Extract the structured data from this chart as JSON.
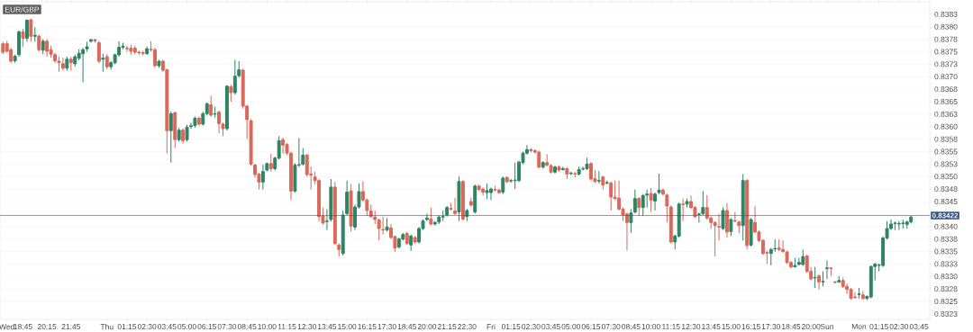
{
  "chart_data": {
    "type": "candlestick",
    "title": "EUR/GBP",
    "categories": [
      null,
      "Wed",
      null,
      null,
      null,
      "18:45",
      null,
      null,
      null,
      null,
      null,
      "20:15",
      null,
      null,
      null,
      null,
      null,
      "21:45",
      null,
      null,
      null,
      null,
      null,
      null,
      null,
      null,
      "Thu",
      null,
      null,
      null,
      null,
      "01:15",
      null,
      null,
      null,
      null,
      "02:30",
      null,
      null,
      null,
      null,
      "03:45",
      null,
      null,
      null,
      null,
      "05:00",
      null,
      null,
      null,
      null,
      "06:15",
      null,
      null,
      null,
      null,
      "07:30",
      null,
      null,
      null,
      null,
      "08:45",
      null,
      null,
      null,
      null,
      "10:00",
      null,
      null,
      null,
      null,
      "11:15",
      null,
      null,
      null,
      null,
      "12:30",
      null,
      null,
      null,
      null,
      "13:45",
      null,
      null,
      null,
      null,
      "15:00",
      null,
      null,
      null,
      null,
      "16:15",
      null,
      null,
      null,
      null,
      "17:30",
      null,
      null,
      null,
      null,
      "18:45",
      null,
      null,
      null,
      null,
      "20:00",
      null,
      null,
      null,
      null,
      "21:15",
      null,
      null,
      null,
      null,
      "22:30",
      null,
      null,
      null,
      null,
      null,
      "Fri",
      null,
      null,
      null,
      null,
      "01:15",
      null,
      null,
      null,
      null,
      "02:30",
      null,
      null,
      null,
      null,
      "03:45",
      null,
      null,
      null,
      null,
      "05:00",
      null,
      null,
      null,
      null,
      "06:15",
      null,
      null,
      null,
      null,
      "07:30",
      null,
      null,
      null,
      null,
      "08:45",
      null,
      null,
      null,
      null,
      "10:00",
      null,
      null,
      null,
      null,
      "11:15",
      null,
      null,
      null,
      null,
      "12:30",
      null,
      null,
      null,
      null,
      "13:45",
      null,
      null,
      null,
      null,
      "15:00",
      null,
      null,
      null,
      null,
      "16:15",
      null,
      null,
      null,
      null,
      "17:30",
      null,
      null,
      null,
      null,
      "18:45",
      null,
      null,
      null,
      null,
      "20:00",
      null,
      null,
      null,
      "Sun",
      null,
      null,
      null,
      null,
      null,
      null,
      null,
      "Mon",
      null,
      null,
      null,
      null,
      "01:15",
      null,
      null,
      null,
      null,
      "02:30",
      null,
      null,
      null,
      null,
      "03:45"
    ],
    "ohlc": [
      [
        0.83766,
        0.8377,
        0.83745,
        0.83749
      ],
      [
        0.83766,
        0.83772,
        0.83748,
        0.83751
      ],
      [
        0.83754,
        0.83758,
        0.83728,
        0.83731
      ],
      [
        0.83732,
        0.83744,
        0.83728,
        0.83741
      ],
      [
        0.83744,
        0.83792,
        0.8374,
        0.8379
      ],
      [
        0.8379,
        0.83796,
        0.8376,
        0.83777
      ],
      [
        0.83777,
        0.83815,
        0.8377,
        0.83813
      ],
      [
        0.83814,
        0.83816,
        0.8377,
        0.83781
      ],
      [
        0.83781,
        0.83799,
        0.8377,
        0.83783
      ],
      [
        0.83781,
        0.83785,
        0.8375,
        0.83754
      ],
      [
        0.83753,
        0.83775,
        0.83745,
        0.83771
      ],
      [
        0.83771,
        0.83775,
        0.8374,
        0.83751
      ],
      [
        0.83754,
        0.83762,
        0.83738,
        0.83745
      ],
      [
        0.83744,
        0.83748,
        0.83727,
        0.83732
      ],
      [
        0.83731,
        0.8374,
        0.8371,
        0.83728
      ],
      [
        0.83726,
        0.83738,
        0.83712,
        0.83717
      ],
      [
        0.83717,
        0.8374,
        0.83712,
        0.83735
      ],
      [
        0.83735,
        0.8374,
        0.83712,
        0.83728
      ],
      [
        0.83726,
        0.83744,
        0.8372,
        0.8374
      ],
      [
        0.83737,
        0.83755,
        0.83733,
        0.83747
      ],
      [
        0.83746,
        0.83758,
        0.83689,
        0.83754
      ],
      [
        0.83756,
        0.8377,
        0.8375,
        0.8376
      ],
      [
        0.83771,
        0.83776,
        0.83768,
        0.83774
      ],
      [
        0.83774,
        0.83776,
        0.83768,
        0.83772
      ],
      [
        0.83768,
        0.83772,
        0.83727,
        0.83731
      ],
      [
        0.83735,
        0.83746,
        0.8371,
        0.83737
      ],
      [
        0.8374,
        0.83745,
        0.83715,
        0.8372
      ],
      [
        0.8372,
        0.83731,
        0.83714,
        0.83728
      ],
      [
        0.83728,
        0.83746,
        0.83725,
        0.83744
      ],
      [
        0.83744,
        0.83771,
        0.8374,
        0.83759
      ],
      [
        0.83759,
        0.83768,
        0.83755,
        0.83761
      ],
      [
        0.83757,
        0.83762,
        0.8375,
        0.83756
      ],
      [
        0.83757,
        0.83764,
        0.83744,
        0.83751
      ],
      [
        0.83757,
        0.83762,
        0.83745,
        0.83749
      ],
      [
        0.83749,
        0.83752,
        0.83744,
        0.83748
      ],
      [
        0.83748,
        0.83752,
        0.83743,
        0.83747
      ],
      [
        0.83746,
        0.8376,
        0.83744,
        0.83756
      ],
      [
        0.83755,
        0.83771,
        0.8375,
        0.83754
      ],
      [
        0.83754,
        0.83758,
        0.83718,
        0.83722
      ],
      [
        0.83722,
        0.83734,
        0.83718,
        0.83731
      ],
      [
        0.83731,
        0.83734,
        0.8371,
        0.83713
      ],
      [
        0.83714,
        0.83716,
        0.83546,
        0.83592
      ],
      [
        0.83592,
        0.8363,
        0.83528,
        0.83626
      ],
      [
        0.83628,
        0.8363,
        0.83557,
        0.83574
      ],
      [
        0.83574,
        0.83598,
        0.8357,
        0.83593
      ],
      [
        0.83593,
        0.83597,
        0.83566,
        0.83572
      ],
      [
        0.83574,
        0.83604,
        0.8357,
        0.83599
      ],
      [
        0.836,
        0.83608,
        0.83596,
        0.83602
      ],
      [
        0.83602,
        0.8362,
        0.83598,
        0.83617
      ],
      [
        0.83617,
        0.8362,
        0.83602,
        0.83605
      ],
      [
        0.83605,
        0.8363,
        0.83602,
        0.83626
      ],
      [
        0.83626,
        0.83648,
        0.83622,
        0.83646
      ],
      [
        0.83644,
        0.83662,
        0.8362,
        0.83623
      ],
      [
        0.83625,
        0.8364,
        0.83618,
        0.83626
      ],
      [
        0.83629,
        0.83632,
        0.83587,
        0.83606
      ],
      [
        0.83605,
        0.83608,
        0.83581,
        0.83596
      ],
      [
        0.83596,
        0.83683,
        0.83592,
        0.83681
      ],
      [
        0.8368,
        0.83684,
        0.8365,
        0.83668
      ],
      [
        0.83668,
        0.83734,
        0.83664,
        0.83701
      ],
      [
        0.83702,
        0.83731,
        0.83698,
        0.83714
      ],
      [
        0.83713,
        0.83716,
        0.83636,
        0.83641
      ],
      [
        0.83641,
        0.83644,
        0.83575,
        0.83614
      ],
      [
        0.83612,
        0.83615,
        0.83522,
        0.83525
      ],
      [
        0.83523,
        0.83526,
        0.83498,
        0.83504
      ],
      [
        0.83505,
        0.83508,
        0.83474,
        0.83489
      ],
      [
        0.83489,
        0.83524,
        0.83474,
        0.8351
      ],
      [
        0.83513,
        0.83528,
        0.8351,
        0.83526
      ],
      [
        0.83526,
        0.83546,
        0.8351,
        0.83516
      ],
      [
        0.83516,
        0.8354,
        0.83512,
        0.83537
      ],
      [
        0.83537,
        0.83581,
        0.83534,
        0.83572
      ],
      [
        0.83574,
        0.83578,
        0.83546,
        0.83563
      ],
      [
        0.83564,
        0.83567,
        0.83543,
        0.83547
      ],
      [
        0.83547,
        0.8355,
        0.83453,
        0.83471
      ],
      [
        0.83471,
        0.83527,
        0.83468,
        0.83523
      ],
      [
        0.83523,
        0.83577,
        0.83519,
        0.83524
      ],
      [
        0.83525,
        0.83557,
        0.83522,
        0.83543
      ],
      [
        0.83543,
        0.83546,
        0.835,
        0.83504
      ],
      [
        0.83505,
        0.8352,
        0.83474,
        0.83503
      ],
      [
        0.83499,
        0.8351,
        0.83485,
        0.83492
      ],
      [
        0.83492,
        0.83495,
        0.8341,
        0.8342
      ],
      [
        0.83421,
        0.83438,
        0.83404,
        0.83407
      ],
      [
        0.8341,
        0.83435,
        0.83393,
        0.83411
      ],
      [
        0.83414,
        0.83495,
        0.8341,
        0.83479
      ],
      [
        0.83479,
        0.83489,
        0.83363,
        0.83366
      ],
      [
        0.83363,
        0.83366,
        0.8334,
        0.83354
      ],
      [
        0.83346,
        0.83432,
        0.83342,
        0.83423
      ],
      [
        0.83426,
        0.83492,
        0.83423,
        0.83469
      ],
      [
        0.83471,
        0.83485,
        0.8339,
        0.83401
      ],
      [
        0.83399,
        0.83444,
        0.83393,
        0.83439
      ],
      [
        0.83439,
        0.83486,
        0.83436,
        0.8347
      ],
      [
        0.8347,
        0.83491,
        0.83449,
        0.83453
      ],
      [
        0.83453,
        0.83456,
        0.83421,
        0.83432
      ],
      [
        0.83431,
        0.83444,
        0.83417,
        0.8342
      ],
      [
        0.83419,
        0.83432,
        0.83405,
        0.83414
      ],
      [
        0.83413,
        0.83416,
        0.83372,
        0.83396
      ],
      [
        0.83394,
        0.8342,
        0.83384,
        0.83393
      ],
      [
        0.83393,
        0.83417,
        0.8339,
        0.83399
      ],
      [
        0.83397,
        0.83405,
        0.83375,
        0.83378
      ],
      [
        0.8338,
        0.83382,
        0.83349,
        0.83357
      ],
      [
        0.83359,
        0.83378,
        0.83356,
        0.83375
      ],
      [
        0.83375,
        0.83387,
        0.83372,
        0.83384
      ],
      [
        0.83386,
        0.83389,
        0.83363,
        0.83366
      ],
      [
        0.83363,
        0.83384,
        0.83351,
        0.83381
      ],
      [
        0.83378,
        0.83381,
        0.83366,
        0.83369
      ],
      [
        0.83369,
        0.83399,
        0.83366,
        0.83396
      ],
      [
        0.83396,
        0.83414,
        0.83393,
        0.83411
      ],
      [
        0.83414,
        0.83426,
        0.83411,
        0.83417
      ],
      [
        0.83415,
        0.83438,
        0.83402,
        0.83405
      ],
      [
        0.83405,
        0.83411,
        0.83402,
        0.83408
      ],
      [
        0.83409,
        0.83422,
        0.83405,
        0.83419
      ],
      [
        0.83419,
        0.83432,
        0.83411,
        0.8342
      ],
      [
        0.83423,
        0.83441,
        0.8342,
        0.83438
      ],
      [
        0.83436,
        0.83447,
        0.83432,
        0.83435
      ],
      [
        0.83431,
        0.83457,
        0.83423,
        0.83426
      ],
      [
        0.83429,
        0.835,
        0.83411,
        0.8349
      ],
      [
        0.8349,
        0.83493,
        0.83412,
        0.83415
      ],
      [
        0.8342,
        0.83435,
        0.83411,
        0.83432
      ],
      [
        0.8345,
        0.83458,
        0.8344,
        0.83443
      ],
      [
        0.83429,
        0.83484,
        0.83426,
        0.83481
      ],
      [
        0.83481,
        0.83483,
        0.83471,
        0.83474
      ],
      [
        0.83475,
        0.83478,
        0.83462,
        0.83469
      ],
      [
        0.83468,
        0.83486,
        0.83455,
        0.83472
      ],
      [
        0.83468,
        0.83478,
        0.83453,
        0.83475
      ],
      [
        0.83474,
        0.83482,
        0.8347,
        0.83473
      ],
      [
        0.83473,
        0.83476,
        0.83465,
        0.83468
      ],
      [
        0.83469,
        0.835,
        0.83465,
        0.83497
      ],
      [
        0.83498,
        0.83501,
        0.83487,
        0.8349
      ],
      [
        0.83491,
        0.83495,
        0.83488,
        0.83492
      ],
      [
        0.83492,
        0.83528,
        0.83475,
        0.83493
      ],
      [
        0.83492,
        0.83532,
        0.83489,
        0.83529
      ],
      [
        0.83528,
        0.8355,
        0.83525,
        0.83547
      ],
      [
        0.83547,
        0.83563,
        0.83544,
        0.83554
      ],
      [
        0.83554,
        0.83557,
        0.83549,
        0.83552
      ],
      [
        0.83552,
        0.83555,
        0.83546,
        0.83549
      ],
      [
        0.83549,
        0.83552,
        0.83516,
        0.83519
      ],
      [
        0.83519,
        0.83531,
        0.83516,
        0.83528
      ],
      [
        0.83528,
        0.83545,
        0.8352,
        0.83523
      ],
      [
        0.83522,
        0.83525,
        0.83506,
        0.83509
      ],
      [
        0.83509,
        0.83522,
        0.83506,
        0.83519
      ],
      [
        0.83519,
        0.83522,
        0.8351,
        0.83513
      ],
      [
        0.83514,
        0.8352,
        0.83512,
        0.83516
      ],
      [
        0.83516,
        0.83519,
        0.83495,
        0.83505
      ],
      [
        0.83506,
        0.8351,
        0.83503,
        0.83507
      ],
      [
        0.83506,
        0.83509,
        0.83498,
        0.83505
      ],
      [
        0.83505,
        0.8352,
        0.83502,
        0.83514
      ],
      [
        0.83515,
        0.8352,
        0.83512,
        0.83516
      ],
      [
        0.83516,
        0.83538,
        0.83513,
        0.83525
      ],
      [
        0.83526,
        0.83529,
        0.83492,
        0.83495
      ],
      [
        0.83496,
        0.83513,
        0.83487,
        0.8349
      ],
      [
        0.83491,
        0.83511,
        0.83486,
        0.83492
      ],
      [
        0.83499,
        0.83502,
        0.83474,
        0.83483
      ],
      [
        0.83487,
        0.83492,
        0.83484,
        0.83488
      ],
      [
        0.83487,
        0.8349,
        0.83432,
        0.83459
      ],
      [
        0.83459,
        0.83492,
        0.83453,
        0.83456
      ],
      [
        0.83457,
        0.83492,
        0.83432,
        0.83435
      ],
      [
        0.83435,
        0.83438,
        0.83411,
        0.83423
      ],
      [
        0.83425,
        0.83428,
        0.83352,
        0.83408
      ],
      [
        0.83408,
        0.83435,
        0.83387,
        0.83427
      ],
      [
        0.83429,
        0.83474,
        0.83426,
        0.83456
      ],
      [
        0.83456,
        0.83459,
        0.83421,
        0.83438
      ],
      [
        0.83438,
        0.83465,
        0.83421,
        0.83462
      ],
      [
        0.83463,
        0.83474,
        0.83438,
        0.83465
      ],
      [
        0.83466,
        0.83477,
        0.83429,
        0.83453
      ],
      [
        0.83451,
        0.83468,
        0.83432,
        0.83465
      ],
      [
        0.83468,
        0.83506,
        0.83465,
        0.83473
      ],
      [
        0.83473,
        0.83476,
        0.83462,
        0.83465
      ],
      [
        0.83463,
        0.83466,
        0.83408,
        0.83441
      ],
      [
        0.83439,
        0.83442,
        0.83366,
        0.83369
      ],
      [
        0.83369,
        0.83384,
        0.83354,
        0.83381
      ],
      [
        0.83381,
        0.83448,
        0.83378,
        0.83445
      ],
      [
        0.83445,
        0.83456,
        0.83411,
        0.83444
      ],
      [
        0.83445,
        0.83456,
        0.83438,
        0.8345
      ],
      [
        0.8345,
        0.83462,
        0.83435,
        0.83438
      ],
      [
        0.83438,
        0.83441,
        0.83417,
        0.8342
      ],
      [
        0.83424,
        0.83428,
        0.83408,
        0.83425
      ],
      [
        0.83426,
        0.83471,
        0.83423,
        0.83438
      ],
      [
        0.83438,
        0.83463,
        0.83414,
        0.83417
      ],
      [
        0.83417,
        0.8342,
        0.83395,
        0.83408
      ],
      [
        0.83408,
        0.83411,
        0.8334,
        0.83402
      ],
      [
        0.834,
        0.83425,
        0.83372,
        0.83399
      ],
      [
        0.83396,
        0.83438,
        0.83393,
        0.83432
      ],
      [
        0.83432,
        0.83447,
        0.83378,
        0.83389
      ],
      [
        0.8339,
        0.83417,
        0.83381,
        0.83414
      ],
      [
        0.83412,
        0.83429,
        0.83408,
        0.83411
      ],
      [
        0.83409,
        0.83412,
        0.83387,
        0.83402
      ],
      [
        0.83402,
        0.83505,
        0.83372,
        0.83492
      ],
      [
        0.83492,
        0.83495,
        0.83354,
        0.83362
      ],
      [
        0.83363,
        0.83417,
        0.8336,
        0.83414
      ],
      [
        0.83408,
        0.83441,
        0.83386,
        0.83389
      ],
      [
        0.83389,
        0.83392,
        0.83369,
        0.83372
      ],
      [
        0.83372,
        0.83375,
        0.83343,
        0.83346
      ],
      [
        0.83348,
        0.83351,
        0.83325,
        0.83347
      ],
      [
        0.83346,
        0.83357,
        0.83322,
        0.83354
      ],
      [
        0.83355,
        0.83374,
        0.83349,
        0.83356
      ],
      [
        0.83357,
        0.83374,
        0.83351,
        0.83354
      ],
      [
        0.83354,
        0.83372,
        0.83347,
        0.8335
      ],
      [
        0.83349,
        0.83352,
        0.83325,
        0.83328
      ],
      [
        0.83328,
        0.83331,
        0.83316,
        0.83319
      ],
      [
        0.83319,
        0.83337,
        0.83319,
        0.83322
      ],
      [
        0.83324,
        0.83337,
        0.83322,
        0.83328
      ],
      [
        0.83324,
        0.83354,
        0.83321,
        0.8334
      ],
      [
        0.83341,
        0.83344,
        0.83307,
        0.8331
      ],
      [
        0.8331,
        0.83319,
        0.83292,
        0.83295
      ],
      [
        0.83297,
        0.83319,
        0.83277,
        0.83298
      ],
      [
        0.83301,
        0.83304,
        0.83274,
        0.83289
      ],
      [
        0.83289,
        0.8331,
        0.8328,
        0.8329
      ],
      [
        0.83316,
        0.83332,
        0.83295,
        0.83317
      ],
      [
        0.83317,
        0.83318,
        0.83301,
        0.83316
      ],
      [
        0.83289,
        0.83291,
        0.83286,
        0.83288
      ],
      [
        0.83289,
        0.83301,
        0.83287,
        0.83292
      ],
      [
        0.83292,
        0.83298,
        0.83277,
        0.8328
      ],
      [
        0.8328,
        0.83286,
        0.83265,
        0.83274
      ],
      [
        0.83274,
        0.83277,
        0.83253,
        0.83256
      ],
      [
        0.83259,
        0.83268,
        0.83255,
        0.83258
      ],
      [
        0.83264,
        0.83277,
        0.83256,
        0.83265
      ],
      [
        0.83263,
        0.83271,
        0.83253,
        0.83256
      ],
      [
        0.83256,
        0.83262,
        0.83253,
        0.8326
      ],
      [
        0.83259,
        0.83322,
        0.83256,
        0.8332
      ],
      [
        0.8332,
        0.83327,
        0.83292,
        0.83325
      ],
      [
        0.83322,
        0.83326,
        0.8331,
        0.83323
      ],
      [
        0.83322,
        0.8338,
        0.83319,
        0.83377
      ],
      [
        0.83377,
        0.83411,
        0.83374,
        0.83396
      ],
      [
        0.83396,
        0.83414,
        0.83393,
        0.83405
      ],
      [
        0.83406,
        0.8341,
        0.83393,
        0.83407
      ],
      [
        0.83405,
        0.83411,
        0.83393,
        0.83406
      ],
      [
        0.83406,
        0.83414,
        0.83396,
        0.83407
      ],
      [
        0.83404,
        0.83412,
        0.83396,
        0.83409
      ],
      [
        0.83409,
        0.83422,
        0.83406,
        0.83419
      ],
      null,
      null
    ],
    "ylim": [
      0.83214,
      0.8385
    ],
    "yticks": [
      {
        "value": 0.83825,
        "label": "0.8383"
      },
      {
        "value": 0.838,
        "label": "0.8380"
      },
      {
        "value": 0.83775,
        "label": "0.8378"
      },
      {
        "value": 0.8375,
        "label": "0.8375"
      },
      {
        "value": 0.83725,
        "label": "0.8373"
      },
      {
        "value": 0.837,
        "label": "0.8370"
      },
      {
        "value": 0.83675,
        "label": "0.8368"
      },
      {
        "value": 0.8365,
        "label": "0.8365"
      },
      {
        "value": 0.83625,
        "label": "0.8363"
      },
      {
        "value": 0.836,
        "label": "0.8360"
      },
      {
        "value": 0.83575,
        "label": "0.8358"
      },
      {
        "value": 0.8355,
        "label": "0.8355"
      },
      {
        "value": 0.83525,
        "label": "0.8353"
      },
      {
        "value": 0.835,
        "label": "0.8350"
      },
      {
        "value": 0.83475,
        "label": "0.8348"
      },
      {
        "value": 0.8345,
        "label": "0.8345"
      },
      {
        "value": 0.83425,
        "label": null
      },
      {
        "value": 0.834,
        "label": "0.8340"
      },
      {
        "value": 0.83375,
        "label": "0.8338"
      },
      {
        "value": 0.8335,
        "label": "0.8335"
      },
      {
        "value": 0.83325,
        "label": "0.8333"
      },
      {
        "value": 0.833,
        "label": "0.8330"
      },
      {
        "value": 0.83275,
        "label": "0.8328"
      },
      {
        "value": 0.8325,
        "label": "0.8325"
      },
      {
        "value": 0.83225,
        "label": "0.8323"
      }
    ],
    "grid": "y",
    "ref_lines": [
      {
        "axis": "y",
        "value": 0.83422,
        "label": "0.83422",
        "color": "#34537d"
      }
    ]
  }
}
